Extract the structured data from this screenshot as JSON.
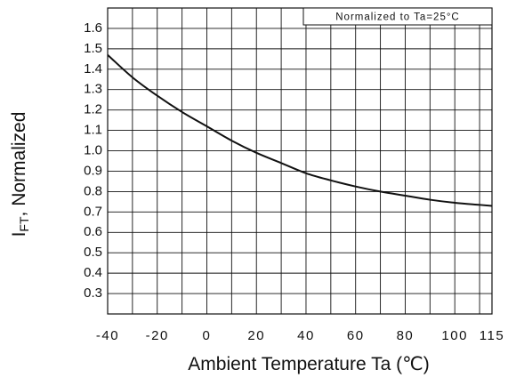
{
  "chart_data": {
    "type": "line",
    "xlabel": "Ambient Temperature Ta (℃)",
    "ylabel_main": "I",
    "ylabel_subscript": "FT",
    "ylabel_rest": ", Normalized",
    "annotation": "Normalized to Ta=25°C",
    "x_ticks": [
      -40,
      -20,
      0,
      20,
      40,
      60,
      80,
      100,
      115
    ],
    "y_ticks": [
      "0.3",
      "0.4",
      "0.5",
      "0.6",
      "0.7",
      "0.8",
      "0.9",
      "1.0",
      "1.1",
      "1.2",
      "1.3",
      "1.4",
      "1.5",
      "1.6"
    ],
    "xlim": [
      -40,
      115
    ],
    "ylim": [
      0.2,
      1.7
    ],
    "grid": true,
    "series": [
      {
        "x": [
          -40,
          -30,
          -20,
          -10,
          0,
          10,
          20,
          30,
          40,
          50,
          60,
          70,
          80,
          90,
          100,
          110,
          115
        ],
        "y": [
          1.47,
          1.36,
          1.27,
          1.19,
          1.12,
          1.05,
          0.99,
          0.94,
          0.89,
          0.855,
          0.825,
          0.8,
          0.78,
          0.76,
          0.745,
          0.735,
          0.73
        ]
      }
    ],
    "line_color": "#111111",
    "grid_color": "#111111"
  }
}
